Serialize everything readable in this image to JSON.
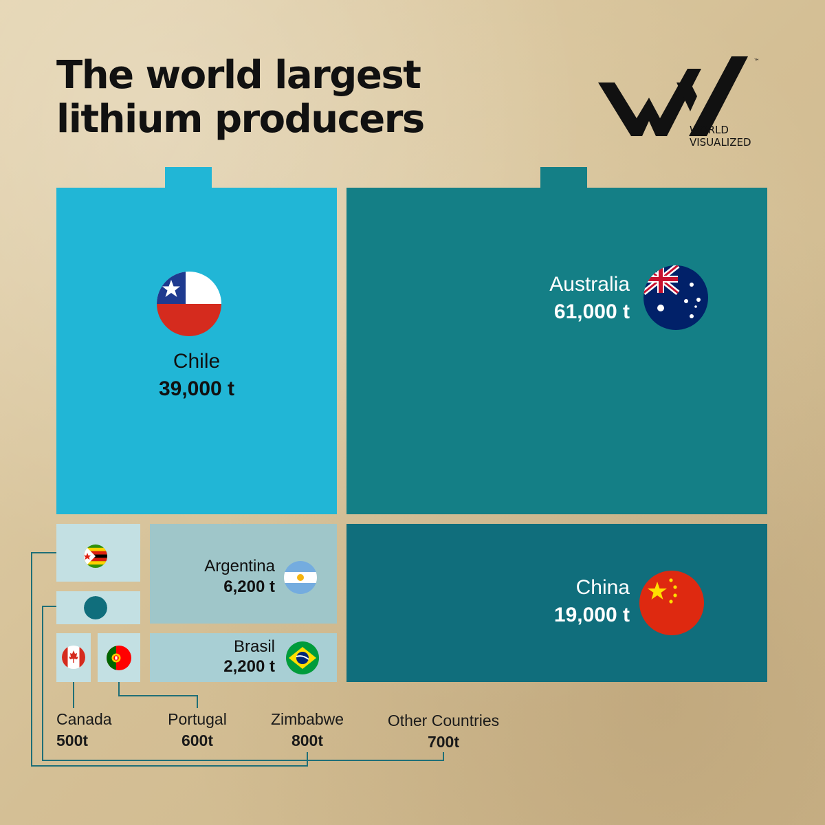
{
  "title_line1": "The world largest",
  "title_line2": "lithium producers",
  "logo": {
    "line1": "WORLD",
    "line2": "VISUALIZED",
    "tm": "™"
  },
  "colors": {
    "chile": "#21b6d6",
    "australia": "#147f86",
    "china": "#106e7c",
    "argentina": "#9fc6c9",
    "brasil": "#a8cfd4",
    "small": "#c3e0e3",
    "connector": "#1f6f77"
  },
  "chart_data": {
    "type": "treemap",
    "unit": "t",
    "items": [
      {
        "country": "Australia",
        "value": 61000,
        "label": "61,000 t",
        "flag": "australia-flag-icon"
      },
      {
        "country": "Chile",
        "value": 39000,
        "label": "39,000 t",
        "flag": "chile-flag-icon"
      },
      {
        "country": "China",
        "value": 19000,
        "label": "19,000 t",
        "flag": "china-flag-icon"
      },
      {
        "country": "Argentina",
        "value": 6200,
        "label": "6,200 t",
        "flag": "argentina-flag-icon"
      },
      {
        "country": "Brasil",
        "value": 2200,
        "label": "2,200 t",
        "flag": "brazil-flag-icon"
      },
      {
        "country": "Zimbabwe",
        "value": 800,
        "label": "800t",
        "flag": "zimbabwe-flag-icon"
      },
      {
        "country": "Other Countries",
        "value": 700,
        "label": "700t",
        "flag": "globe-dot-icon"
      },
      {
        "country": "Portugal",
        "value": 600,
        "label": "600t",
        "flag": "portugal-flag-icon"
      },
      {
        "country": "Canada",
        "value": 500,
        "label": "500t",
        "flag": "canada-flag-icon"
      }
    ]
  }
}
